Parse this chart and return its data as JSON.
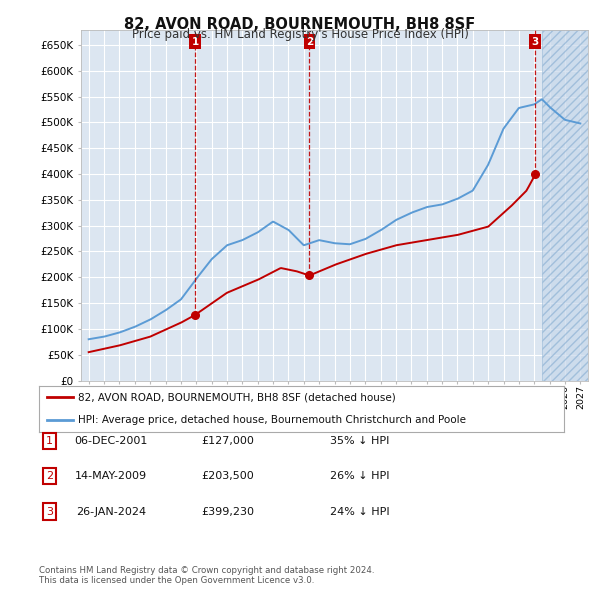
{
  "title": "82, AVON ROAD, BOURNEMOUTH, BH8 8SF",
  "subtitle": "Price paid vs. HM Land Registry's House Price Index (HPI)",
  "ylabel_ticks": [
    "£0",
    "£50K",
    "£100K",
    "£150K",
    "£200K",
    "£250K",
    "£300K",
    "£350K",
    "£400K",
    "£450K",
    "£500K",
    "£550K",
    "£600K",
    "£650K"
  ],
  "ytick_vals": [
    0,
    50000,
    100000,
    150000,
    200000,
    250000,
    300000,
    350000,
    400000,
    450000,
    500000,
    550000,
    600000,
    650000
  ],
  "hpi_color": "#5b9bd5",
  "price_color": "#c00000",
  "sale_marker_color": "#c00000",
  "sale_label_bg": "#c00000",
  "sales": [
    {
      "date": 2001.92,
      "price": 127000,
      "label": "1"
    },
    {
      "date": 2009.37,
      "price": 203500,
      "label": "2"
    },
    {
      "date": 2024.07,
      "price": 399230,
      "label": "3"
    }
  ],
  "legend_line1": "82, AVON ROAD, BOURNEMOUTH, BH8 8SF (detached house)",
  "legend_line2": "HPI: Average price, detached house, Bournemouth Christchurch and Poole",
  "table_rows": [
    [
      "1",
      "06-DEC-2001",
      "£127,000",
      "35% ↓ HPI"
    ],
    [
      "2",
      "14-MAY-2009",
      "£203,500",
      "26% ↓ HPI"
    ],
    [
      "3",
      "26-JAN-2024",
      "£399,230",
      "24% ↓ HPI"
    ]
  ],
  "footer": "Contains HM Land Registry data © Crown copyright and database right 2024.\nThis data is licensed under the Open Government Licence v3.0.",
  "bg_color": "#ffffff",
  "plot_bg_color": "#dce6f1",
  "grid_color": "#ffffff",
  "xlim": [
    1994.5,
    2027.5
  ],
  "ylim": [
    0,
    680000
  ],
  "hpi_years": [
    1995,
    1996,
    1997,
    1998,
    1999,
    2000,
    2001,
    2002,
    2003,
    2004,
    2005,
    2006,
    2007,
    2008,
    2009,
    2010,
    2011,
    2012,
    2013,
    2014,
    2015,
    2016,
    2017,
    2018,
    2019,
    2020,
    2021,
    2022,
    2023,
    2024,
    2024.5,
    2025,
    2026,
    2027
  ],
  "hpi_vals": [
    80000,
    85000,
    93000,
    104000,
    118000,
    136000,
    157000,
    197000,
    235000,
    262000,
    272000,
    287000,
    308000,
    292000,
    262000,
    272000,
    266000,
    264000,
    274000,
    291000,
    311000,
    325000,
    336000,
    341000,
    352000,
    368000,
    418000,
    488000,
    528000,
    535000,
    545000,
    530000,
    505000,
    498000
  ],
  "prop_key_x": [
    1995,
    1997,
    1999,
    2001,
    2001.92,
    2004,
    2006,
    2007.5,
    2008.5,
    2009.37,
    2011,
    2013,
    2015,
    2017,
    2019,
    2021,
    2022.5,
    2023.5,
    2024.07
  ],
  "prop_key_y": [
    55000,
    68000,
    85000,
    112000,
    127000,
    170000,
    195000,
    218000,
    212000,
    203500,
    224000,
    245000,
    262000,
    272000,
    282000,
    298000,
    338000,
    368000,
    399230
  ]
}
